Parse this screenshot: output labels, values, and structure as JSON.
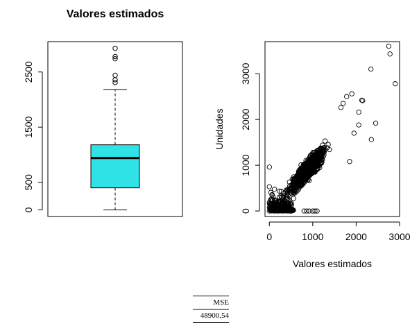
{
  "chart_data": [
    {
      "type": "box",
      "title": "Valores estimados",
      "xlabel": "",
      "ylabel": "",
      "ylim": [
        -120,
        3050
      ],
      "yticks": [
        0,
        500,
        1500,
        2500
      ],
      "box": {
        "min": 0,
        "q1": 400,
        "median": 940,
        "q3": 1180,
        "max": 2180,
        "fill": "#2ee2e6"
      },
      "outliers": [
        2310,
        2360,
        2440,
        2740,
        2780,
        2930
      ]
    },
    {
      "type": "scatter",
      "title": "",
      "xlabel": "Valores estimados",
      "ylabel": "Unidades",
      "xlim": [
        -100,
        3000
      ],
      "ylim": [
        -120,
        3700
      ],
      "xticks": [
        0,
        1000,
        2000,
        3000
      ],
      "yticks": [
        0,
        1000,
        2000,
        3000
      ],
      "points": [
        [
          2750,
          3600
        ],
        [
          2780,
          3430
        ],
        [
          2900,
          2780
        ],
        [
          2340,
          3100
        ],
        [
          1900,
          2560
        ],
        [
          2130,
          2420
        ],
        [
          2150,
          2410
        ],
        [
          2060,
          2160
        ],
        [
          2450,
          1920
        ],
        [
          2060,
          1880
        ],
        [
          2350,
          1560
        ],
        [
          1950,
          1700
        ],
        [
          1850,
          1080
        ],
        [
          1700,
          2350
        ],
        [
          1780,
          2500
        ],
        [
          1650,
          2260
        ],
        [
          0,
          960
        ],
        [
          0,
          530
        ],
        [
          0,
          0
        ],
        [
          1000,
          0
        ],
        [
          1100,
          0
        ],
        [
          1050,
          0
        ],
        [
          920,
          0
        ],
        [
          860,
          0
        ],
        [
          800,
          0
        ]
      ]
    }
  ],
  "mse_table": {
    "header": "MSE",
    "value": "48900.54"
  }
}
